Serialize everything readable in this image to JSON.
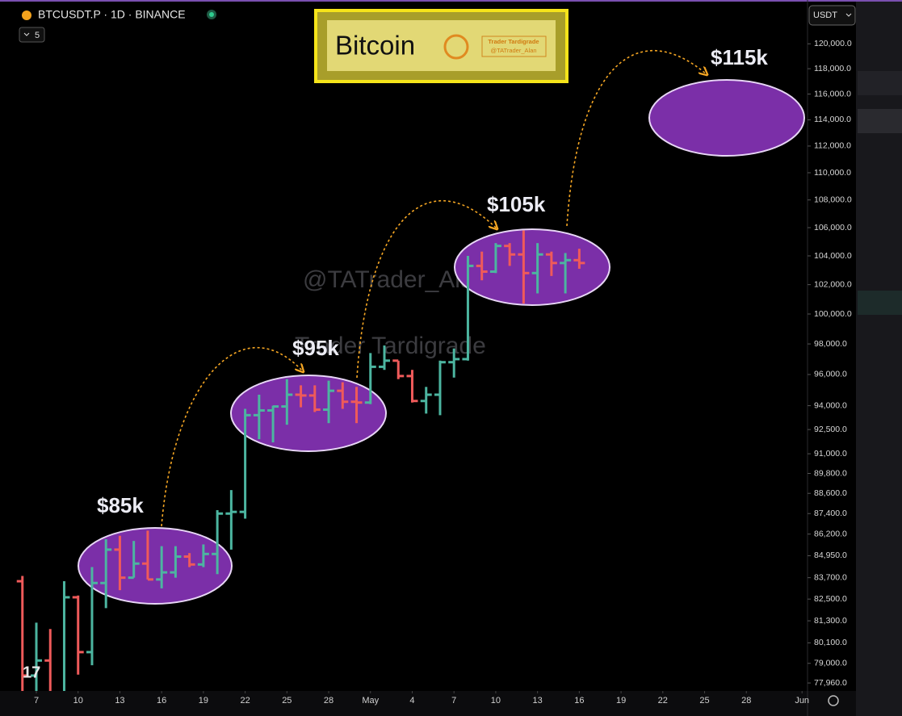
{
  "ui": {
    "symbol": "BTCUSDT.P · 1D · BINANCE",
    "interval_badge": "5",
    "currency": "USDT"
  },
  "banner": {
    "title": "Bitcoin",
    "credit": "Trader Tardigrade",
    "handle": "@TATrader_Alan"
  },
  "watermarks": [
    "@TATrader_Alan",
    "Trader Tardigrade"
  ],
  "chart_data": {
    "type": "ohlc",
    "yscale": "log",
    "up_color": "#4cb5a0",
    "down_color": "#ef5a5a",
    "x": [
      "04-06",
      "04-07",
      "04-08",
      "04-09",
      "04-10",
      "04-11",
      "04-12",
      "04-13",
      "04-14",
      "04-15",
      "04-16",
      "04-17",
      "04-18",
      "04-19",
      "04-20",
      "04-21",
      "04-22",
      "04-23",
      "04-24",
      "04-25",
      "04-26",
      "04-27",
      "04-28",
      "04-29",
      "04-30",
      "05-01",
      "05-02",
      "05-03",
      "05-04",
      "05-05",
      "05-06",
      "05-07",
      "05-08",
      "05-09",
      "05-10",
      "05-11",
      "05-12",
      "05-13",
      "05-14",
      "05-15",
      "05-16"
    ],
    "open": [
      83500,
      78350,
      79150,
      76300,
      82600,
      79600,
      83400,
      85300,
      83700,
      84500,
      83600,
      84000,
      84900,
      84450,
      85050,
      87400,
      87500,
      93400,
      93700,
      93950,
      94700,
      94650,
      93750,
      94950,
      94250,
      94200,
      96500,
      96900,
      95900,
      94300,
      94700,
      96800,
      97000,
      103300,
      102900,
      104700,
      104100,
      102800,
      104100,
      103500,
      103700
    ],
    "high": [
      83800,
      81200,
      80850,
      83500,
      82700,
      84300,
      85900,
      86100,
      85800,
      86400,
      85500,
      85500,
      85100,
      85600,
      87600,
      88800,
      93800,
      94700,
      94000,
      95700,
      95300,
      95300,
      95600,
      95500,
      95200,
      97400,
      97900,
      96900,
      96300,
      95200,
      96900,
      97700,
      104000,
      104300,
      104900,
      104900,
      105800,
      104900,
      104300,
      104200,
      104500
    ],
    "low": [
      77150,
      74500,
      76200,
      74600,
      78400,
      78900,
      82000,
      83000,
      83700,
      83600,
      83100,
      83700,
      84300,
      84300,
      83900,
      85300,
      87100,
      91900,
      91700,
      92800,
      93900,
      93600,
      92900,
      93800,
      92900,
      94100,
      96300,
      95700,
      94200,
      93500,
      93400,
      95800,
      96900,
      102300,
      102800,
      103300,
      100700,
      101400,
      102600,
      101400,
      103100
    ],
    "close": [
      78350,
      79150,
      76300,
      82600,
      79600,
      83400,
      85300,
      83700,
      84500,
      83600,
      84000,
      84900,
      84450,
      85050,
      87400,
      87500,
      93400,
      93700,
      93950,
      94700,
      94650,
      93750,
      94950,
      94250,
      94200,
      96500,
      96900,
      95900,
      94300,
      94700,
      96800,
      97000,
      103300,
      102900,
      104700,
      104100,
      102800,
      104100,
      103500,
      103700,
      103500
    ],
    "ylim": [
      77540,
      123600
    ],
    "yticks": [
      {
        "value": 120000,
        "label": "120,000.0"
      },
      {
        "value": 118000,
        "label": "118,000.0"
      },
      {
        "value": 116000,
        "label": "116,000.0"
      },
      {
        "value": 114000,
        "label": "114,000.0"
      },
      {
        "value": 112000,
        "label": "112,000.0"
      },
      {
        "value": 110000,
        "label": "110,000.0"
      },
      {
        "value": 108000,
        "label": "108,000.0"
      },
      {
        "value": 106000,
        "label": "106,000.0"
      },
      {
        "value": 104000,
        "label": "104,000.0"
      },
      {
        "value": 102000,
        "label": "102,000.0"
      },
      {
        "value": 100000,
        "label": "100,000.0"
      },
      {
        "value": 98000,
        "label": "98,000.0"
      },
      {
        "value": 96000,
        "label": "96,000.0"
      },
      {
        "value": 94000,
        "label": "94,000.0"
      },
      {
        "value": 92500,
        "label": "92,500.0"
      },
      {
        "value": 91000,
        "label": "91,000.0"
      },
      {
        "value": 89800,
        "label": "89,800.0"
      },
      {
        "value": 88600,
        "label": "88,600.0"
      },
      {
        "value": 87400,
        "label": "87,400.0"
      },
      {
        "value": 86200,
        "label": "86,200.0"
      },
      {
        "value": 84950,
        "label": "84,950.0"
      },
      {
        "value": 83700,
        "label": "83,700.0"
      },
      {
        "value": 82500,
        "label": "82,500.0"
      },
      {
        "value": 81300,
        "label": "81,300.0"
      },
      {
        "value": 80100,
        "label": "80,100.0"
      },
      {
        "value": 79000,
        "label": "79,000.0"
      },
      {
        "value": 77960,
        "label": "77,960.0"
      }
    ],
    "xticks": [
      {
        "value": "04-07",
        "label": "7"
      },
      {
        "value": "04-10",
        "label": "10"
      },
      {
        "value": "04-13",
        "label": "13"
      },
      {
        "value": "04-16",
        "label": "16"
      },
      {
        "value": "04-19",
        "label": "19"
      },
      {
        "value": "04-22",
        "label": "22"
      },
      {
        "value": "04-25",
        "label": "25"
      },
      {
        "value": "04-28",
        "label": "28"
      },
      {
        "value": "05-01",
        "label": "May"
      },
      {
        "value": "05-04",
        "label": "4"
      },
      {
        "value": "05-07",
        "label": "7"
      },
      {
        "value": "05-10",
        "label": "10"
      },
      {
        "value": "05-13",
        "label": "13"
      },
      {
        "value": "05-16",
        "label": "16"
      },
      {
        "value": "05-19",
        "label": "19"
      },
      {
        "value": "05-22",
        "label": "22"
      },
      {
        "value": "05-25",
        "label": "25"
      },
      {
        "value": "05-28",
        "label": "28"
      },
      {
        "value": "06-01",
        "label": "Jun"
      }
    ],
    "annotations": [
      "$85k",
      "$95k",
      "$105k",
      "$115k"
    ]
  }
}
